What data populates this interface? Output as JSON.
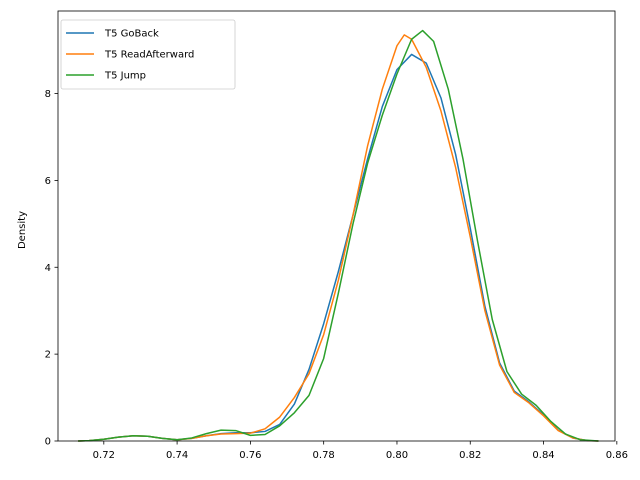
{
  "chart_data": {
    "type": "line",
    "title": "",
    "xlabel": "",
    "ylabel": "Density",
    "xlim": [
      0.7075,
      0.8595
    ],
    "ylim": [
      0,
      9.9
    ],
    "xticks": [
      0.72,
      0.74,
      0.76,
      0.78,
      0.8,
      0.82,
      0.84,
      0.86
    ],
    "xtick_labels": [
      "0.72",
      "0.74",
      "0.76",
      "0.78",
      "0.80",
      "0.82",
      "0.84",
      "0.86"
    ],
    "yticks": [
      0,
      2,
      4,
      6,
      8
    ],
    "ytick_labels": [
      "0",
      "2",
      "4",
      "6",
      "8"
    ],
    "grid": false,
    "legend_position": "top-left",
    "series": [
      {
        "name": "T5 GoBack",
        "color": "#1f77b4",
        "points": [
          [
            0.713,
            0.0
          ],
          [
            0.716,
            0.01
          ],
          [
            0.72,
            0.04
          ],
          [
            0.724,
            0.09
          ],
          [
            0.728,
            0.12
          ],
          [
            0.732,
            0.11
          ],
          [
            0.736,
            0.06
          ],
          [
            0.74,
            0.03
          ],
          [
            0.744,
            0.06
          ],
          [
            0.748,
            0.12
          ],
          [
            0.752,
            0.17
          ],
          [
            0.756,
            0.19
          ],
          [
            0.76,
            0.19
          ],
          [
            0.764,
            0.22
          ],
          [
            0.768,
            0.38
          ],
          [
            0.772,
            0.85
          ],
          [
            0.776,
            1.65
          ],
          [
            0.78,
            2.7
          ],
          [
            0.784,
            3.9
          ],
          [
            0.788,
            5.2
          ],
          [
            0.792,
            6.5
          ],
          [
            0.796,
            7.7
          ],
          [
            0.8,
            8.55
          ],
          [
            0.804,
            8.9
          ],
          [
            0.808,
            8.7
          ],
          [
            0.812,
            7.9
          ],
          [
            0.816,
            6.6
          ],
          [
            0.82,
            4.9
          ],
          [
            0.824,
            3.1
          ],
          [
            0.828,
            1.8
          ],
          [
            0.832,
            1.15
          ],
          [
            0.836,
            0.9
          ],
          [
            0.84,
            0.6
          ],
          [
            0.844,
            0.25
          ],
          [
            0.848,
            0.07
          ],
          [
            0.852,
            0.01
          ],
          [
            0.855,
            0.0
          ]
        ]
      },
      {
        "name": "T5 ReadAfterward",
        "color": "#ff7f0e",
        "points": [
          [
            0.713,
            0.0
          ],
          [
            0.716,
            0.01
          ],
          [
            0.72,
            0.04
          ],
          [
            0.724,
            0.09
          ],
          [
            0.728,
            0.12
          ],
          [
            0.732,
            0.11
          ],
          [
            0.736,
            0.06
          ],
          [
            0.74,
            0.03
          ],
          [
            0.744,
            0.06
          ],
          [
            0.748,
            0.12
          ],
          [
            0.752,
            0.16
          ],
          [
            0.756,
            0.17
          ],
          [
            0.76,
            0.18
          ],
          [
            0.764,
            0.28
          ],
          [
            0.768,
            0.55
          ],
          [
            0.772,
            1.0
          ],
          [
            0.776,
            1.55
          ],
          [
            0.78,
            2.45
          ],
          [
            0.784,
            3.7
          ],
          [
            0.788,
            5.2
          ],
          [
            0.792,
            6.8
          ],
          [
            0.796,
            8.1
          ],
          [
            0.8,
            9.1
          ],
          [
            0.802,
            9.35
          ],
          [
            0.804,
            9.25
          ],
          [
            0.808,
            8.6
          ],
          [
            0.812,
            7.6
          ],
          [
            0.816,
            6.3
          ],
          [
            0.82,
            4.7
          ],
          [
            0.824,
            3.0
          ],
          [
            0.828,
            1.75
          ],
          [
            0.832,
            1.12
          ],
          [
            0.836,
            0.88
          ],
          [
            0.84,
            0.58
          ],
          [
            0.844,
            0.24
          ],
          [
            0.848,
            0.07
          ],
          [
            0.852,
            0.01
          ],
          [
            0.855,
            0.0
          ]
        ]
      },
      {
        "name": "T5 Jump",
        "color": "#2ca02c",
        "points": [
          [
            0.713,
            0.0
          ],
          [
            0.716,
            0.01
          ],
          [
            0.72,
            0.04
          ],
          [
            0.724,
            0.09
          ],
          [
            0.728,
            0.12
          ],
          [
            0.732,
            0.11
          ],
          [
            0.736,
            0.06
          ],
          [
            0.74,
            0.03
          ],
          [
            0.744,
            0.07
          ],
          [
            0.748,
            0.17
          ],
          [
            0.752,
            0.25
          ],
          [
            0.756,
            0.24
          ],
          [
            0.76,
            0.13
          ],
          [
            0.764,
            0.15
          ],
          [
            0.768,
            0.35
          ],
          [
            0.772,
            0.65
          ],
          [
            0.776,
            1.05
          ],
          [
            0.78,
            1.9
          ],
          [
            0.784,
            3.4
          ],
          [
            0.788,
            5.0
          ],
          [
            0.792,
            6.4
          ],
          [
            0.796,
            7.5
          ],
          [
            0.8,
            8.45
          ],
          [
            0.804,
            9.25
          ],
          [
            0.807,
            9.45
          ],
          [
            0.81,
            9.2
          ],
          [
            0.814,
            8.1
          ],
          [
            0.818,
            6.5
          ],
          [
            0.822,
            4.6
          ],
          [
            0.826,
            2.8
          ],
          [
            0.83,
            1.6
          ],
          [
            0.834,
            1.08
          ],
          [
            0.838,
            0.82
          ],
          [
            0.842,
            0.45
          ],
          [
            0.846,
            0.16
          ],
          [
            0.85,
            0.03
          ],
          [
            0.855,
            0.0
          ]
        ]
      }
    ]
  }
}
